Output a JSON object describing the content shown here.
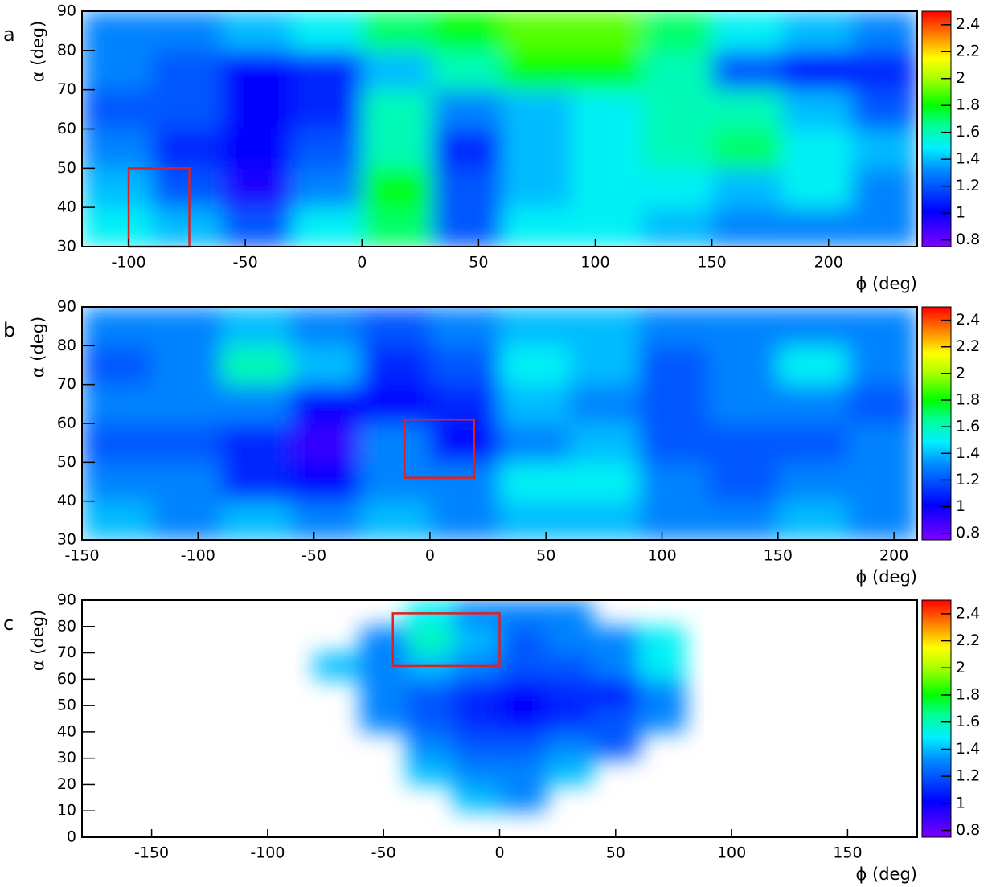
{
  "chart_data": [
    {
      "type": "heatmap",
      "panel": "a",
      "xlabel": "ϕ (deg)",
      "ylabel": "α (deg)",
      "xlim": [
        -120,
        238
      ],
      "ylim": [
        30,
        90
      ],
      "xticks": [
        -100,
        -50,
        0,
        50,
        100,
        150,
        200
      ],
      "yticks": [
        30,
        40,
        50,
        60,
        70,
        80,
        90
      ],
      "zlim": [
        0.75,
        2.5
      ],
      "zticks": [
        0.8,
        1,
        1.2,
        1.4,
        1.6,
        1.8,
        2,
        2.2,
        2.4
      ],
      "xbins": [
        -120,
        -90,
        -60,
        -30,
        0,
        30,
        60,
        90,
        120,
        150,
        180,
        210,
        238
      ],
      "ybins": [
        30,
        40,
        50,
        60,
        70,
        80,
        90
      ],
      "z": [
        [
          1.5,
          1.4,
          1.2,
          1.5,
          1.7,
          1.2,
          1.5,
          1.5,
          1.4,
          1.3,
          1.3,
          1.3
        ],
        [
          1.4,
          1.2,
          0.95,
          1.3,
          1.8,
          1.2,
          1.4,
          1.5,
          1.5,
          1.4,
          1.5,
          1.3
        ],
        [
          1.3,
          1.1,
          1.0,
          1.2,
          1.6,
          1.1,
          1.4,
          1.5,
          1.6,
          1.7,
          1.5,
          1.4
        ],
        [
          1.2,
          1.2,
          1.0,
          1.1,
          1.6,
          1.3,
          1.4,
          1.5,
          1.6,
          1.6,
          1.4,
          1.2
        ],
        [
          1.3,
          1.2,
          1.0,
          1.1,
          1.4,
          1.6,
          1.8,
          1.8,
          1.6,
          1.2,
          1.0,
          1.1
        ],
        [
          1.3,
          1.3,
          1.4,
          1.5,
          1.7,
          1.8,
          1.9,
          1.9,
          1.7,
          1.5,
          1.4,
          1.3
        ]
      ],
      "highlight": {
        "x": [
          -100,
          -74
        ],
        "y": [
          30,
          50
        ],
        "color": "#e02020"
      }
    },
    {
      "type": "heatmap",
      "panel": "b",
      "xlabel": "ϕ (deg)",
      "ylabel": "α (deg)",
      "xlim": [
        -150,
        210
      ],
      "ylim": [
        30,
        90
      ],
      "xticks": [
        -150,
        -100,
        -50,
        0,
        50,
        100,
        150,
        200
      ],
      "yticks": [
        30,
        40,
        50,
        60,
        70,
        80,
        90
      ],
      "zlim": [
        0.75,
        2.5
      ],
      "zticks": [
        0.8,
        1,
        1.2,
        1.4,
        1.6,
        1.8,
        2,
        2.2,
        2.4
      ],
      "xbins": [
        -150,
        -120,
        -90,
        -60,
        -30,
        0,
        30,
        60,
        90,
        120,
        150,
        180,
        210
      ],
      "ybins": [
        30,
        40,
        50,
        60,
        70,
        80,
        90
      ],
      "z": [
        [
          1.4,
          1.3,
          1.4,
          1.3,
          1.4,
          1.3,
          1.4,
          1.4,
          1.3,
          1.3,
          1.4,
          1.3
        ],
        [
          1.3,
          1.3,
          1.1,
          1.0,
          1.3,
          1.3,
          1.5,
          1.5,
          1.3,
          1.2,
          1.3,
          1.3
        ],
        [
          1.2,
          1.2,
          1.1,
          0.9,
          1.3,
          1.0,
          1.3,
          1.4,
          1.2,
          1.2,
          1.2,
          1.3
        ],
        [
          1.3,
          1.3,
          1.3,
          1.0,
          1.0,
          1.1,
          1.4,
          1.3,
          1.2,
          1.3,
          1.3,
          1.2
        ],
        [
          1.2,
          1.3,
          1.6,
          1.4,
          1.1,
          1.2,
          1.5,
          1.4,
          1.2,
          1.3,
          1.5,
          1.3
        ],
        [
          1.3,
          1.3,
          1.4,
          1.3,
          1.2,
          1.3,
          1.4,
          1.4,
          1.3,
          1.3,
          1.3,
          1.3
        ]
      ],
      "highlight": {
        "x": [
          -11,
          19
        ],
        "y": [
          46,
          61
        ],
        "color": "#e02020"
      }
    },
    {
      "type": "heatmap",
      "panel": "c",
      "xlabel": "ϕ (deg)",
      "ylabel": "α (deg)",
      "xlim": [
        -180,
        180
      ],
      "ylim": [
        0,
        90
      ],
      "xticks": [
        -150,
        -100,
        -50,
        0,
        50,
        100,
        150
      ],
      "yticks": [
        0,
        10,
        20,
        30,
        40,
        50,
        60,
        70,
        80,
        90
      ],
      "zlim": [
        0.75,
        2.5
      ],
      "zticks": [
        0.8,
        1,
        1.2,
        1.4,
        1.6,
        1.8,
        2,
        2.2,
        2.4
      ],
      "xbins": [
        -80,
        -60,
        -40,
        -20,
        0,
        20,
        40,
        60,
        80,
        100
      ],
      "ybins": [
        10,
        20,
        30,
        40,
        50,
        60,
        70,
        80,
        90
      ],
      "z": [
        [
          null,
          null,
          null,
          1.4,
          1.3,
          null,
          null,
          null,
          null
        ],
        [
          null,
          null,
          1.4,
          1.3,
          1.3,
          1.4,
          null,
          null,
          null
        ],
        [
          null,
          null,
          1.3,
          1.2,
          1.2,
          1.3,
          1.2,
          null,
          null
        ],
        [
          null,
          1.3,
          1.2,
          1.1,
          1.0,
          1.1,
          1.2,
          1.3,
          null
        ],
        [
          null,
          1.3,
          1.2,
          1.1,
          1.0,
          1.1,
          1.0,
          1.3,
          null
        ],
        [
          1.4,
          1.3,
          1.4,
          1.3,
          1.2,
          1.2,
          1.3,
          1.5,
          null
        ],
        [
          null,
          1.3,
          1.6,
          1.4,
          1.2,
          1.3,
          1.3,
          1.5,
          null
        ],
        [
          null,
          null,
          1.5,
          1.3,
          1.3,
          1.3,
          null,
          null,
          null
        ]
      ],
      "highlight": {
        "x": [
          -46,
          0
        ],
        "y": [
          65,
          85
        ],
        "color": "#e02020"
      }
    }
  ]
}
